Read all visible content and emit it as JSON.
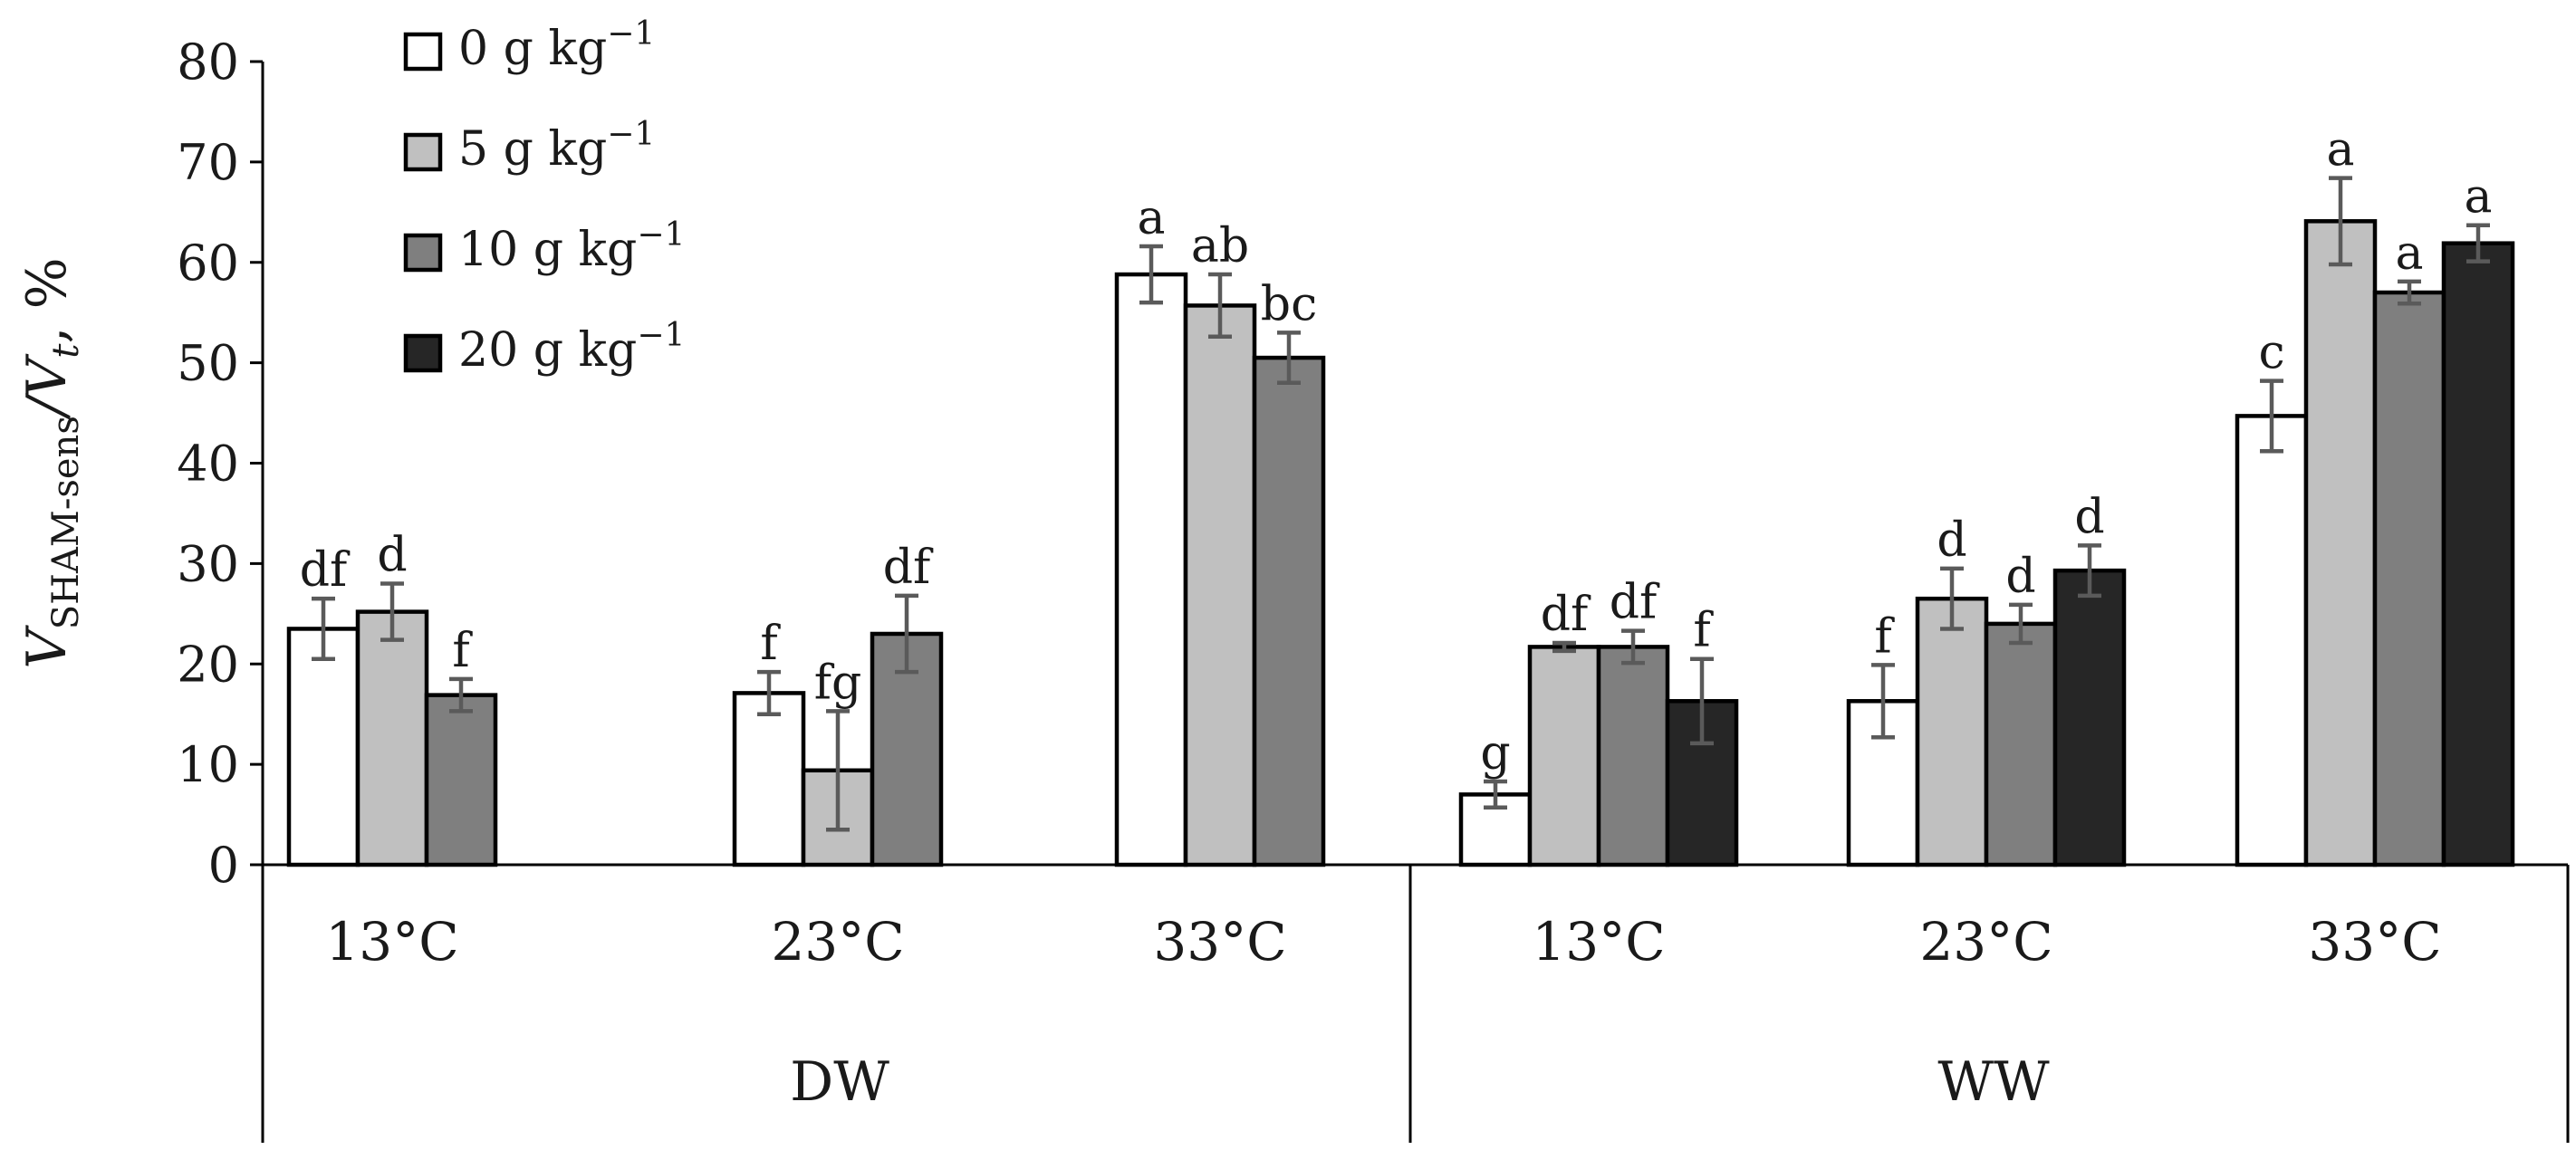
{
  "chart_data": {
    "type": "bar",
    "ylabel": {
      "main": "V",
      "sub1": "SHAM-sens",
      "mid": "/V",
      "sub2": "t",
      "suffix": ", %"
    },
    "ylim": [
      0,
      80
    ],
    "yticks": [
      "0",
      "10",
      "20",
      "30",
      "40",
      "50",
      "60",
      "70",
      "80"
    ],
    "grid": false,
    "legend_position": "top-left",
    "series": [
      {
        "name": "0 g kg",
        "exp": "−1",
        "color": "#ffffff"
      },
      {
        "name": "5 g kg",
        "exp": "−1",
        "color": "#c0c0c0"
      },
      {
        "name": "10 g kg",
        "exp": "−1",
        "color": "#7f7f7f"
      },
      {
        "name": "20 g kg",
        "exp": "−1",
        "color": "#262626"
      }
    ],
    "groups": [
      {
        "label": "DW",
        "categories": [
          {
            "label": "13°C",
            "bars": [
              {
                "series": 0,
                "value": 23.5,
                "error": 3.0,
                "sig": "df"
              },
              {
                "series": 1,
                "value": 25.2,
                "error": 2.8,
                "sig": "d"
              },
              {
                "series": 2,
                "value": 16.9,
                "error": 1.6,
                "sig": "f"
              }
            ]
          },
          {
            "label": "23°C",
            "bars": [
              {
                "series": 0,
                "value": 17.1,
                "error": 2.1,
                "sig": "f"
              },
              {
                "series": 1,
                "value": 9.4,
                "error": 5.9,
                "sig": "fg"
              },
              {
                "series": 2,
                "value": 23.0,
                "error": 3.8,
                "sig": "df"
              }
            ]
          },
          {
            "label": "33°C",
            "bars": [
              {
                "series": 0,
                "value": 58.8,
                "error": 2.8,
                "sig": "a"
              },
              {
                "series": 1,
                "value": 55.7,
                "error": 3.1,
                "sig": "ab"
              },
              {
                "series": 2,
                "value": 50.5,
                "error": 2.5,
                "sig": "bc"
              }
            ]
          }
        ]
      },
      {
        "label": "WW",
        "categories": [
          {
            "label": "13°C",
            "bars": [
              {
                "series": 0,
                "value": 7.0,
                "error": 1.3,
                "sig": "g"
              },
              {
                "series": 1,
                "value": 21.7,
                "error": 0.4,
                "sig": "df"
              },
              {
                "series": 2,
                "value": 21.7,
                "error": 1.6,
                "sig": "df"
              },
              {
                "series": 3,
                "value": 16.3,
                "error": 4.2,
                "sig": "f"
              }
            ]
          },
          {
            "label": "23°C",
            "bars": [
              {
                "series": 0,
                "value": 16.3,
                "error": 3.6,
                "sig": "f"
              },
              {
                "series": 1,
                "value": 26.5,
                "error": 3.0,
                "sig": "d"
              },
              {
                "series": 2,
                "value": 24.0,
                "error": 1.9,
                "sig": "d"
              },
              {
                "series": 3,
                "value": 29.3,
                "error": 2.5,
                "sig": "d"
              }
            ]
          },
          {
            "label": "33°C",
            "bars": [
              {
                "series": 0,
                "value": 44.7,
                "error": 3.5,
                "sig": "c"
              },
              {
                "series": 1,
                "value": 64.1,
                "error": 4.3,
                "sig": "a"
              },
              {
                "series": 2,
                "value": 57.0,
                "error": 1.1,
                "sig": "a"
              },
              {
                "series": 3,
                "value": 61.9,
                "error": 1.8,
                "sig": "a"
              }
            ]
          }
        ]
      }
    ]
  }
}
